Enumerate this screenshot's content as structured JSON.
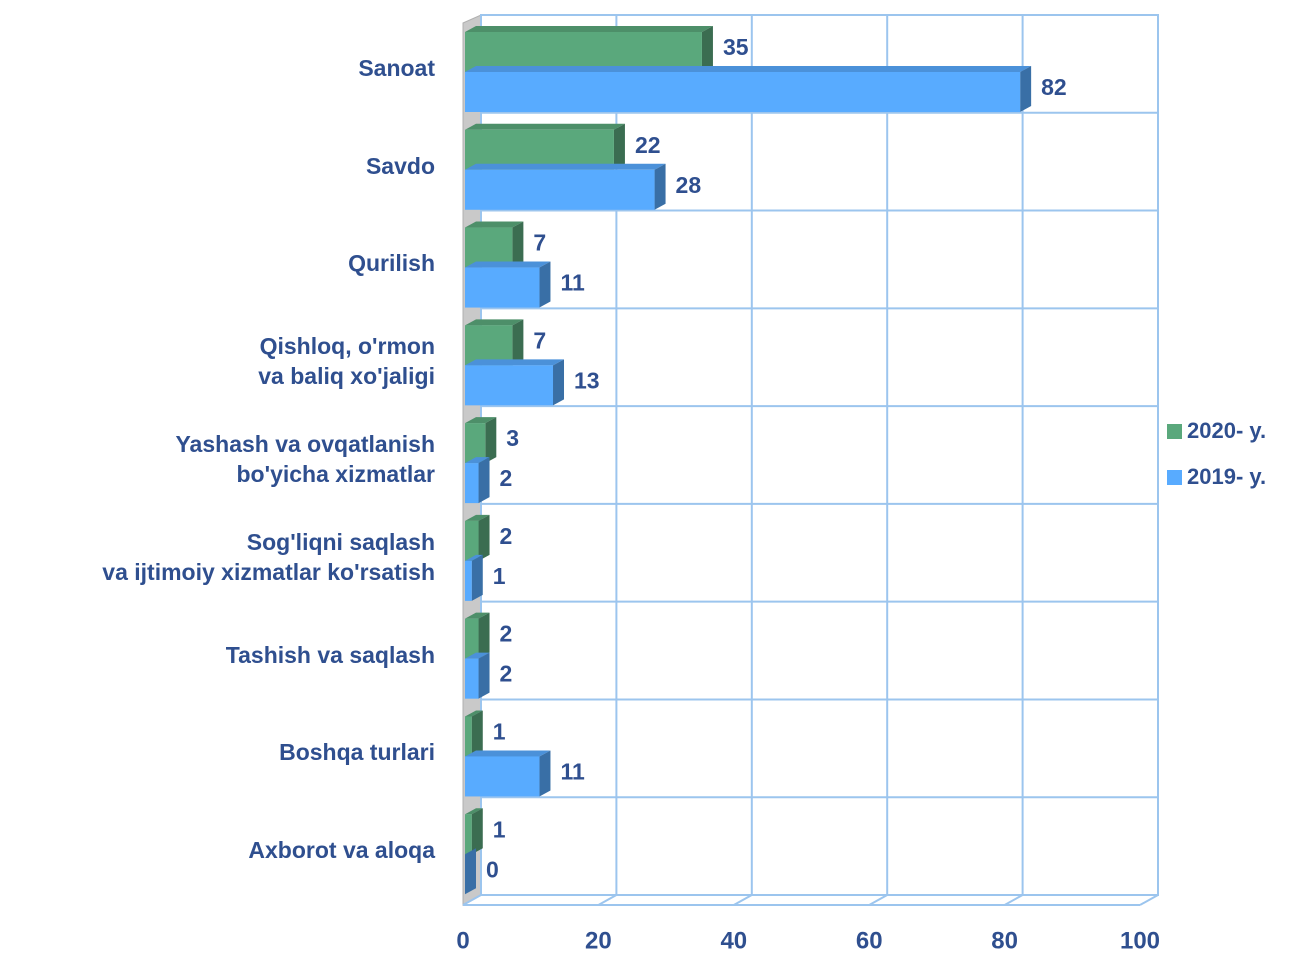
{
  "chart_data": {
    "type": "bar3d_horizontal",
    "categories": [
      "Sanoat",
      "Savdo",
      "Qurilish",
      "Qishloq, o'rmon\nva baliq xo'jaligi",
      "Yashash va ovqatlanish\nbo'yicha xizmatlar",
      "Sog'liqni saqlash\nva ijtimoiy xizmatlar ko'rsatish",
      "Tashish va saqlash",
      "Boshqa turlari",
      "Axborot va aloqa"
    ],
    "series": [
      {
        "name": "2020- y.",
        "color": "#5aa87c",
        "values": [
          35,
          22,
          7,
          7,
          3,
          2,
          2,
          1,
          1
        ]
      },
      {
        "name": "2019- y.",
        "color": "#58abff",
        "values": [
          82,
          28,
          11,
          13,
          2,
          1,
          2,
          11,
          0
        ]
      }
    ],
    "xlim": [
      0,
      100
    ],
    "xticks": [
      0,
      20,
      40,
      60,
      80,
      100
    ],
    "grid": true,
    "legend": "right"
  }
}
